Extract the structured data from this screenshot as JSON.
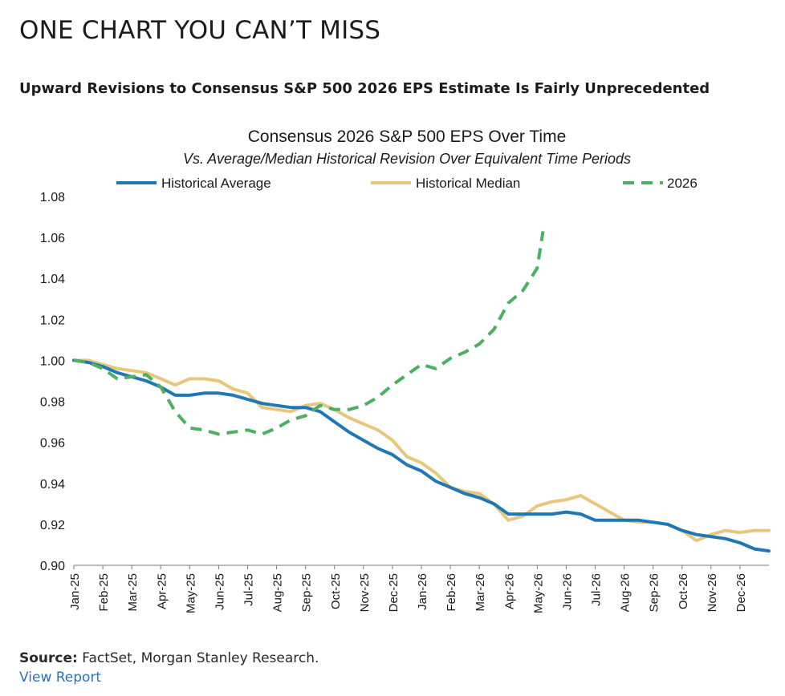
{
  "header": {
    "headline": "ONE CHART YOU CAN’T MISS",
    "subheadline": "Upward Revisions to Consensus S&P 500 2026 EPS Estimate Is Fairly Unprecedented"
  },
  "footer": {
    "source_label": "Source:",
    "source_text": "FactSet, Morgan Stanley Research.",
    "view_report": "View Report"
  },
  "colors": {
    "historical_average": "#1f77b4",
    "historical_median": "#e8c77d",
    "line_2026": "#4caf61",
    "link": "#2a73b8"
  },
  "chart_data": {
    "type": "line",
    "title": "Consensus 2026 S&P 500 EPS Over Time",
    "subtitle": "Vs. Average/Median Historical Revision Over Equivalent Time Periods",
    "xlabel": "",
    "ylabel": "",
    "ylim": [
      0.9,
      1.08
    ],
    "yticks": [
      "0.90",
      "0.92",
      "0.94",
      "0.96",
      "0.98",
      "1.00",
      "1.02",
      "1.04",
      "1.06",
      "1.08"
    ],
    "xticks": [
      "Jan-25",
      "Feb-25",
      "Mar-25",
      "Apr-25",
      "May-25",
      "Jun-25",
      "Jul-25",
      "Aug-25",
      "Sep-25",
      "Oct-25",
      "Nov-25",
      "Dec-25",
      "Jan-26",
      "Feb-26",
      "Mar-26",
      "Apr-26",
      "May-26",
      "Jun-26",
      "Jul-26",
      "Aug-26",
      "Sep-26",
      "Oct-26",
      "Nov-26",
      "Dec-26"
    ],
    "xlim": [
      0,
      24
    ],
    "grid": false,
    "legend_position": "top",
    "series": [
      {
        "name": "Historical Average",
        "style": "solid",
        "x": [
          0,
          0.5,
          1,
          1.5,
          2,
          2.5,
          3,
          3.5,
          4,
          4.5,
          5,
          5.5,
          6,
          6.5,
          7,
          7.5,
          8,
          8.5,
          9,
          9.5,
          10,
          10.5,
          11,
          11.5,
          12,
          12.5,
          13,
          13.5,
          14,
          14.5,
          15,
          15.5,
          16,
          16.5,
          17,
          17.5,
          18,
          18.5,
          19,
          19.5,
          20,
          20.5,
          21,
          21.5,
          22,
          22.5,
          23,
          23.5,
          24
        ],
        "values": [
          1.0,
          0.999,
          0.997,
          0.994,
          0.992,
          0.99,
          0.987,
          0.983,
          0.983,
          0.984,
          0.984,
          0.983,
          0.981,
          0.979,
          0.978,
          0.977,
          0.977,
          0.975,
          0.97,
          0.965,
          0.961,
          0.957,
          0.954,
          0.949,
          0.946,
          0.941,
          0.938,
          0.935,
          0.933,
          0.93,
          0.925,
          0.925,
          0.925,
          0.925,
          0.926,
          0.925,
          0.922,
          0.922,
          0.922,
          0.922,
          0.921,
          0.92,
          0.917,
          0.915,
          0.914,
          0.913,
          0.911,
          0.908,
          0.907
        ]
      },
      {
        "name": "Historical Median",
        "style": "solid",
        "x": [
          0,
          0.5,
          1,
          1.5,
          2,
          2.5,
          3,
          3.5,
          4,
          4.5,
          5,
          5.5,
          6,
          6.5,
          7,
          7.5,
          8,
          8.5,
          9,
          9.5,
          10,
          10.5,
          11,
          11.5,
          12,
          12.5,
          13,
          13.5,
          14,
          14.5,
          15,
          15.5,
          16,
          16.5,
          17,
          17.5,
          18,
          18.5,
          19,
          19.5,
          20,
          20.5,
          21,
          21.5,
          22,
          22.5,
          23,
          23.5,
          24
        ],
        "values": [
          1.0,
          1.0,
          0.998,
          0.996,
          0.995,
          0.994,
          0.991,
          0.988,
          0.991,
          0.991,
          0.99,
          0.986,
          0.984,
          0.977,
          0.976,
          0.975,
          0.978,
          0.979,
          0.976,
          0.972,
          0.969,
          0.966,
          0.961,
          0.953,
          0.95,
          0.945,
          0.938,
          0.936,
          0.935,
          0.93,
          0.922,
          0.924,
          0.929,
          0.931,
          0.932,
          0.934,
          0.93,
          0.926,
          0.922,
          0.921,
          0.921,
          0.92,
          0.917,
          0.912,
          0.915,
          0.917,
          0.916,
          0.917,
          0.917
        ]
      },
      {
        "name": "2026",
        "style": "dashed",
        "x": [
          0,
          0.5,
          1,
          1.5,
          2,
          2.5,
          3,
          3.5,
          4,
          4.5,
          5,
          5.5,
          6,
          6.5,
          7,
          7.5,
          8,
          8.5,
          9,
          9.5,
          10,
          10.5,
          11,
          11.5,
          12,
          12.5,
          13,
          13.5,
          14,
          14.5,
          15,
          15.5,
          16,
          16.2
        ],
        "values": [
          1.0,
          0.999,
          0.996,
          0.991,
          0.992,
          0.993,
          0.987,
          0.975,
          0.967,
          0.966,
          0.964,
          0.965,
          0.966,
          0.964,
          0.967,
          0.971,
          0.973,
          0.978,
          0.976,
          0.976,
          0.978,
          0.982,
          0.988,
          0.993,
          0.998,
          0.996,
          1.001,
          1.004,
          1.008,
          1.015,
          1.028,
          1.034,
          1.045,
          1.063
        ]
      }
    ]
  }
}
